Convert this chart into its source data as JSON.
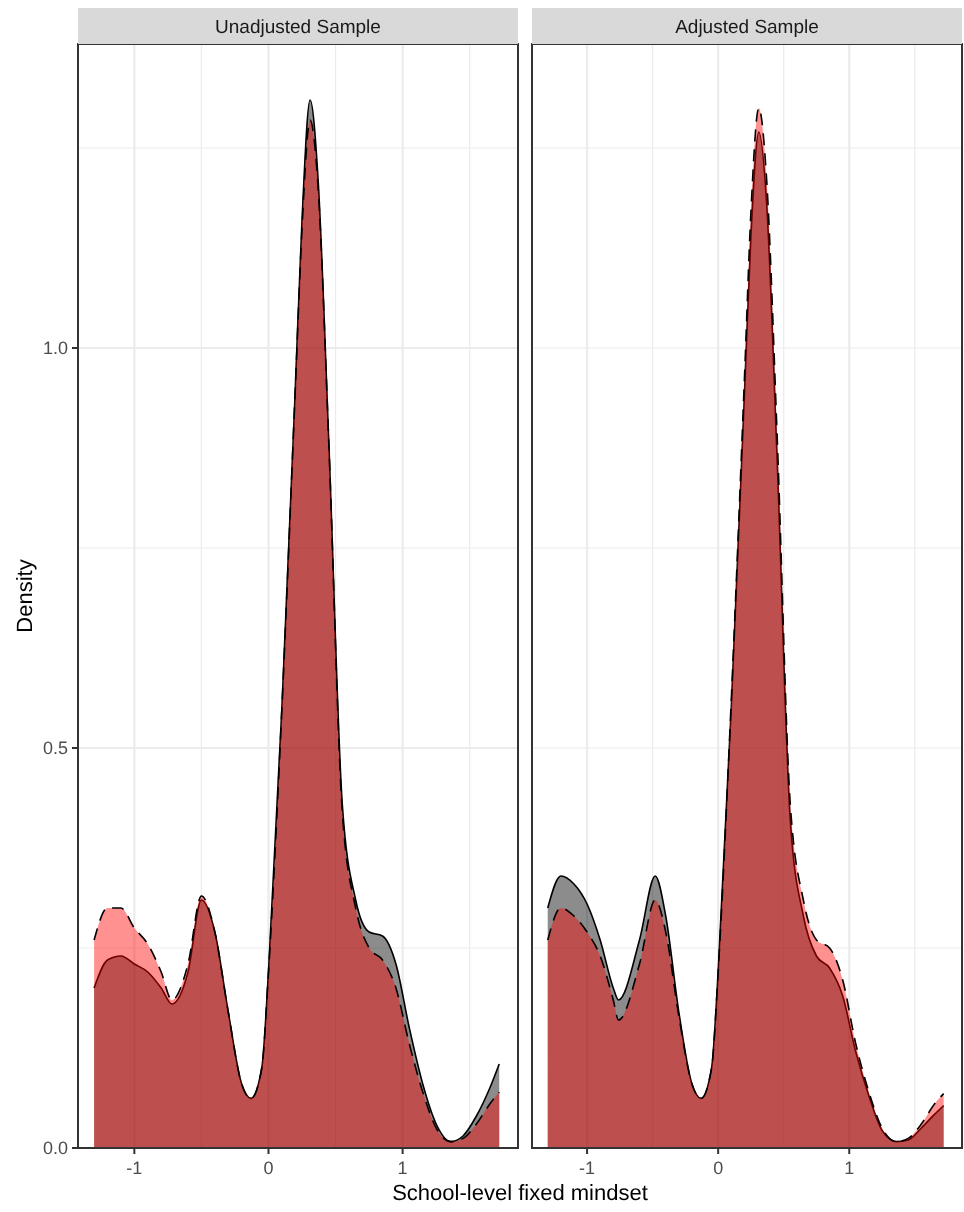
{
  "chart_data": [
    {
      "type": "area",
      "title": "Unadjusted Sample",
      "xlabel": "School-level fixed mindset",
      "ylabel": "Density",
      "xlim": [
        -1.42,
        1.86
      ],
      "ylim": [
        0,
        1.38
      ],
      "xticks": [
        -1,
        {
          "value": -0.5,
          "label": null
        },
        0,
        {
          "value": 0.5,
          "label": null
        },
        1,
        {
          "value": 1.5,
          "label": null
        }
      ],
      "yticks": [
        {
          "value": 0,
          "label": "0.0"
        },
        {
          "value": 0.25,
          "label": null
        },
        {
          "value": 0.5,
          "label": "0.5"
        },
        {
          "value": 0.75,
          "label": null
        },
        {
          "value": 1,
          "label": "1.0"
        },
        {
          "value": 1.25,
          "label": null
        }
      ],
      "grid": true,
      "x": [
        -1.3,
        -1.2,
        -1.1,
        -1.0,
        -0.9,
        -0.8,
        -0.72,
        -0.6,
        -0.5,
        -0.4,
        -0.3,
        -0.2,
        -0.13,
        -0.05,
        0.0,
        0.1,
        0.2,
        0.25,
        0.31,
        0.37,
        0.45,
        0.55,
        0.65,
        0.75,
        0.85,
        0.95,
        1.05,
        1.15,
        1.25,
        1.36,
        1.45,
        1.55,
        1.65,
        1.72
      ],
      "series": [
        {
          "color": "#000000",
          "line_style": "solid",
          "values": [
            0.2,
            0.235,
            0.24,
            0.23,
            0.22,
            0.2,
            0.18,
            0.22,
            0.31,
            0.27,
            0.17,
            0.08,
            0.062,
            0.1,
            0.22,
            0.55,
            0.95,
            1.16,
            1.31,
            1.21,
            0.88,
            0.43,
            0.31,
            0.27,
            0.265,
            0.23,
            0.15,
            0.08,
            0.03,
            0.008,
            0.015,
            0.04,
            0.075,
            0.105
          ]
        },
        {
          "color": "#ff0000",
          "line_style": "dashed",
          "values": [
            0.26,
            0.3,
            0.3,
            0.275,
            0.255,
            0.22,
            0.185,
            0.23,
            0.315,
            0.27,
            0.17,
            0.08,
            0.062,
            0.1,
            0.22,
            0.55,
            0.95,
            1.15,
            1.285,
            1.2,
            0.88,
            0.42,
            0.3,
            0.25,
            0.235,
            0.2,
            0.13,
            0.07,
            0.025,
            0.008,
            0.012,
            0.03,
            0.055,
            0.07
          ]
        }
      ]
    },
    {
      "type": "area",
      "title": "Adjusted Sample",
      "xlim": [
        -1.42,
        1.86
      ],
      "ylim": [
        0,
        1.38
      ],
      "tick_labels": "x",
      "xticks": [
        -1,
        {
          "value": -0.5,
          "label": null
        },
        0,
        {
          "value": 0.5,
          "label": null
        },
        1,
        {
          "value": 1.5,
          "label": null
        }
      ],
      "yticks": [
        {
          "value": 0,
          "label": null
        },
        {
          "value": 0.25,
          "label": null
        },
        {
          "value": 0.5,
          "label": null
        },
        {
          "value": 0.75,
          "label": null
        },
        {
          "value": 1,
          "label": null
        },
        {
          "value": 1.25,
          "label": null
        }
      ],
      "grid": true,
      "x": [
        -1.3,
        -1.2,
        -1.1,
        -1.0,
        -0.9,
        -0.8,
        -0.76,
        -0.6,
        -0.48,
        -0.4,
        -0.3,
        -0.2,
        -0.13,
        -0.05,
        0.0,
        0.1,
        0.2,
        0.25,
        0.31,
        0.37,
        0.45,
        0.55,
        0.65,
        0.75,
        0.85,
        0.95,
        1.05,
        1.15,
        1.25,
        1.36,
        1.45,
        1.55,
        1.65,
        1.72
      ],
      "series": [
        {
          "color": "#000000",
          "line_style": "solid",
          "values": [
            0.3,
            0.34,
            0.33,
            0.305,
            0.26,
            0.2,
            0.185,
            0.26,
            0.34,
            0.29,
            0.17,
            0.08,
            0.062,
            0.1,
            0.22,
            0.55,
            0.94,
            1.14,
            1.27,
            1.18,
            0.86,
            0.41,
            0.29,
            0.24,
            0.225,
            0.19,
            0.12,
            0.065,
            0.022,
            0.008,
            0.01,
            0.025,
            0.042,
            0.053
          ]
        },
        {
          "color": "#ff0000",
          "line_style": "dashed",
          "values": [
            0.26,
            0.3,
            0.29,
            0.27,
            0.24,
            0.185,
            0.16,
            0.23,
            0.31,
            0.27,
            0.165,
            0.08,
            0.062,
            0.1,
            0.22,
            0.56,
            0.96,
            1.17,
            1.3,
            1.21,
            0.89,
            0.43,
            0.31,
            0.26,
            0.25,
            0.21,
            0.13,
            0.07,
            0.025,
            0.008,
            0.012,
            0.03,
            0.055,
            0.068
          ]
        }
      ]
    }
  ]
}
